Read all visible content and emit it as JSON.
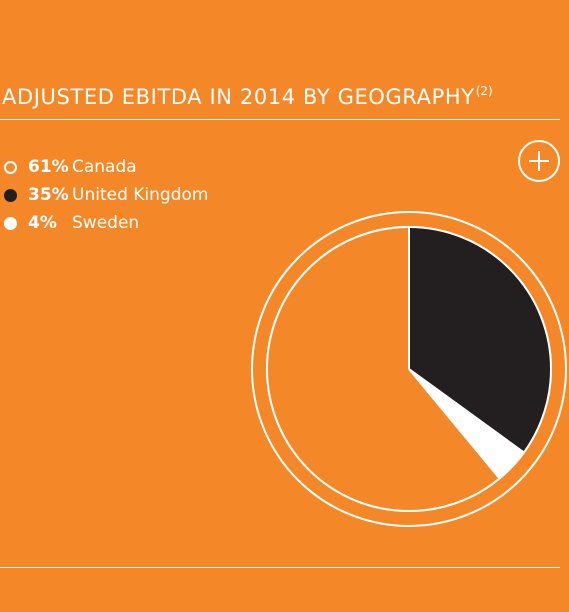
{
  "header": {
    "title": "ADJUSTED EBITDA IN 2014 BY GEOGRAPHY",
    "footnote": "(2)"
  },
  "colors": {
    "background": "#F48828",
    "canada": "#F48828",
    "united_kingdom": "#231F20",
    "sweden": "#FFFFFF",
    "ring": "#FFFFFF"
  },
  "legend": [
    {
      "percent_label": "61%",
      "name": "Canada",
      "marker": "hollow-circle"
    },
    {
      "percent_label": "35%",
      "name": "United Kingdom",
      "marker": "black-circle"
    },
    {
      "percent_label": "4%",
      "name": "Sweden",
      "marker": "white-circle"
    }
  ],
  "expand_button": {
    "icon": "plus-circle-icon"
  },
  "chart_data": {
    "type": "pie",
    "title": "ADJUSTED EBITDA IN 2014 BY GEOGRAPHY",
    "unit": "%",
    "start_angle": "12 o'clock",
    "direction": "clockwise",
    "legend_position": "top-left",
    "slices": [
      {
        "label": "United Kingdom",
        "value": 35,
        "color": "#231F20"
      },
      {
        "label": "Sweden",
        "value": 4,
        "color": "#FFFFFF"
      },
      {
        "label": "Canada",
        "value": 61,
        "color": "#F48828"
      }
    ]
  }
}
